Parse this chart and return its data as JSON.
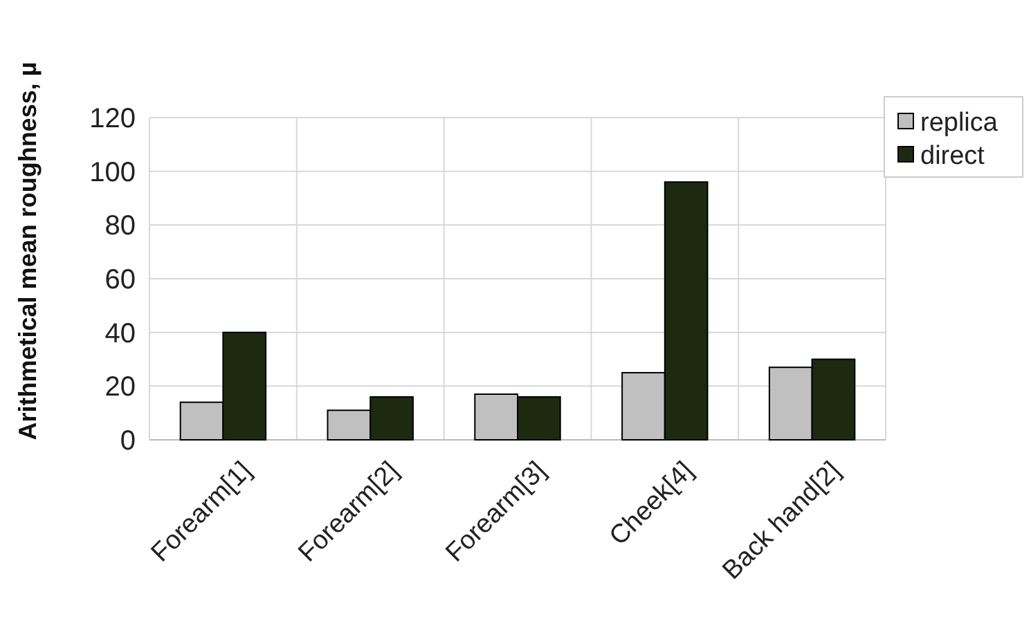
{
  "chart_data": {
    "type": "bar",
    "ylabel": "Arithmetical mean roughness, µ",
    "categories": [
      "Forearm[1]",
      "Forearm[2]",
      "Forearm[3]",
      "Cheek[4]",
      "Back hand[2]"
    ],
    "series": [
      {
        "name": "replica",
        "color": "#c0c0c0",
        "values": [
          14,
          11,
          17,
          25,
          27
        ]
      },
      {
        "name": "direct",
        "color": "#1e2a10",
        "values": [
          40,
          16,
          16,
          96,
          30
        ]
      }
    ],
    "ylim": [
      0,
      120
    ],
    "yticks": [
      0,
      20,
      40,
      60,
      80,
      100,
      120
    ],
    "grid": true,
    "legend": "top right"
  }
}
